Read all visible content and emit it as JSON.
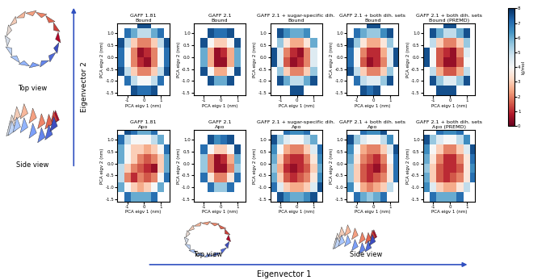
{
  "chart_data": {
    "type": "heatmap",
    "x_label": "PCA eigv 1 (nm)",
    "y_label": "PCA eigv 2 (nm)",
    "xlim": [
      -1.6,
      1.5
    ],
    "ylim": [
      -1.6,
      1.4
    ],
    "xticks": [
      -1,
      0,
      1
    ],
    "yticks": [
      {
        "value": -1.5,
        "label": "-1.5"
      },
      {
        "value": -1.0,
        "label": "-1.0"
      },
      {
        "value": -0.5,
        "label": "-0.5"
      },
      {
        "value": 0.0,
        "label": "0.0"
      },
      {
        "value": 0.5,
        "label": "0.5"
      },
      {
        "value": 1.0,
        "label": "1.0"
      }
    ],
    "x_edges": [
      -1.6,
      -1.2,
      -0.8,
      -0.4,
      0.0,
      0.4,
      0.8,
      1.2,
      1.6
    ],
    "y_edges": [
      -1.6,
      -1.2,
      -0.8,
      -0.4,
      0.0,
      0.4,
      0.8,
      1.2,
      1.6
    ],
    "colorbar": {
      "label": "kJ/mol",
      "lim": [
        0,
        8
      ],
      "ticks": [
        0,
        1,
        2,
        3,
        4,
        5,
        6,
        7,
        8
      ]
    },
    "annotations": {
      "eigenvector_1": "Eigenvector 1",
      "eigenvector_2": "Eigenvector 2",
      "top_view": "Top view",
      "side_view": "Side view"
    },
    "panels": [
      {
        "title": "GAFF 1.81\nBound",
        "cells": [
          [
            null,
            null,
            7.5,
            7,
            7,
            7.5,
            null,
            null
          ],
          [
            null,
            7,
            5,
            4,
            4,
            5,
            7,
            null
          ],
          [
            7.5,
            5,
            3,
            2,
            2,
            3,
            5,
            7.5
          ],
          [
            7,
            4,
            2,
            1,
            0.5,
            2,
            4,
            7
          ],
          [
            7,
            4,
            2,
            0.5,
            1,
            2,
            4,
            7
          ],
          [
            7.5,
            5,
            3,
            2,
            2,
            3,
            5,
            7.5
          ],
          [
            null,
            7,
            6,
            5,
            5,
            6,
            7,
            null
          ],
          [
            null,
            null,
            null,
            7.5,
            7.5,
            null,
            null,
            null
          ]
        ]
      },
      {
        "title": "GAFF 2.1\nBound",
        "cells": [
          [
            null,
            null,
            null,
            null,
            null,
            null,
            null,
            null
          ],
          [
            null,
            null,
            7.5,
            6,
            6,
            7.5,
            null,
            null
          ],
          [
            null,
            7.5,
            4,
            2.5,
            2.5,
            4,
            7.5,
            null
          ],
          [
            null,
            6,
            2.5,
            0.5,
            0.5,
            2.5,
            6,
            null
          ],
          [
            null,
            6,
            2.5,
            0.5,
            1,
            2.5,
            6,
            null
          ],
          [
            null,
            7.5,
            4,
            3,
            3,
            4,
            7.5,
            null
          ],
          [
            null,
            null,
            7.5,
            7,
            7,
            7.5,
            null,
            null
          ],
          [
            null,
            null,
            null,
            null,
            null,
            null,
            null,
            null
          ]
        ]
      },
      {
        "title": "GAFF 2.1 + sugar-specific dih.\nBound",
        "cells": [
          [
            null,
            null,
            null,
            7.5,
            7.5,
            null,
            null,
            null
          ],
          [
            null,
            7.5,
            6,
            5,
            5,
            6,
            7.5,
            null
          ],
          [
            null,
            5.5,
            3,
            2,
            2,
            3,
            5.5,
            null
          ],
          [
            7.5,
            4.5,
            1.5,
            0.5,
            1,
            2,
            4.5,
            null
          ],
          [
            7.5,
            4.5,
            2,
            1,
            0.5,
            2,
            4.5,
            null
          ],
          [
            null,
            5.5,
            3.5,
            2.5,
            2.5,
            3.5,
            6,
            null
          ],
          [
            null,
            7.5,
            6.5,
            6,
            6,
            6.5,
            null,
            null
          ],
          [
            null,
            null,
            null,
            null,
            null,
            null,
            null,
            null
          ]
        ]
      },
      {
        "title": "GAFF 2.1 + both dih. sets\nBound",
        "cells": [
          [
            null,
            null,
            7.5,
            7,
            7.5,
            null,
            null,
            null
          ],
          [
            null,
            7,
            5,
            4.5,
            4.5,
            5.5,
            7.5,
            null
          ],
          [
            7.5,
            5,
            3,
            2,
            2,
            3,
            5.5,
            null
          ],
          [
            7,
            4,
            1.5,
            0.5,
            1,
            2,
            4.5,
            7.5
          ],
          [
            7,
            4,
            2,
            1,
            1,
            2.5,
            4.5,
            7.5
          ],
          [
            7.5,
            5.5,
            3.5,
            2.5,
            2.5,
            3.5,
            5.5,
            null
          ],
          [
            null,
            7,
            6,
            5.5,
            5.5,
            6.5,
            7.5,
            null
          ],
          [
            null,
            null,
            null,
            7.5,
            7.5,
            null,
            null,
            null
          ]
        ]
      },
      {
        "title": "GAFF 2.1 + both dih. sets\nBound (PREMD)",
        "cells": [
          [
            null,
            null,
            7.5,
            7.5,
            7.5,
            null,
            null,
            null
          ],
          [
            null,
            7.5,
            5.5,
            4.5,
            4.5,
            5.5,
            7.5,
            null
          ],
          [
            null,
            5,
            2.5,
            1.5,
            1.5,
            2.5,
            5,
            null
          ],
          [
            7.5,
            4,
            1.5,
            0.5,
            0.5,
            1.5,
            4,
            null
          ],
          [
            7.5,
            4,
            1.5,
            1,
            0.5,
            2,
            4.5,
            null
          ],
          [
            null,
            5,
            3,
            2,
            2,
            3,
            5.5,
            null
          ],
          [
            null,
            7.5,
            6,
            5,
            5,
            6,
            7.5,
            null
          ],
          [
            null,
            null,
            null,
            7.5,
            7.5,
            null,
            null,
            null
          ]
        ]
      },
      {
        "title": "GAFF 1.81\nApo",
        "cells": [
          [
            null,
            7,
            6,
            6,
            6,
            7,
            null,
            null
          ],
          [
            6,
            4,
            3,
            2.5,
            3,
            4,
            6,
            null
          ],
          [
            5,
            2,
            1,
            2,
            1.5,
            2,
            4,
            7
          ],
          [
            5,
            3,
            2,
            1.5,
            1,
            0.5,
            3,
            6
          ],
          [
            6,
            4,
            3,
            2,
            1.5,
            2,
            3,
            6
          ],
          [
            6,
            4,
            3,
            3,
            2.5,
            3,
            4,
            7
          ],
          [
            7,
            5,
            4,
            4,
            4,
            5,
            6,
            null
          ],
          [
            null,
            7.5,
            7,
            6,
            6,
            7,
            null,
            null
          ]
        ]
      },
      {
        "title": "GAFF 2.1\nApo",
        "cells": [
          [
            null,
            null,
            null,
            null,
            null,
            null,
            null,
            null
          ],
          [
            null,
            null,
            7,
            5.5,
            5.5,
            7,
            null,
            null
          ],
          [
            null,
            7,
            3.5,
            2,
            2,
            3.5,
            7,
            null
          ],
          [
            null,
            5.5,
            2,
            0.5,
            0.5,
            2,
            5.5,
            null
          ],
          [
            null,
            5.5,
            2,
            0.5,
            1,
            2.5,
            6,
            null
          ],
          [
            null,
            7,
            4,
            3,
            3,
            4,
            7.5,
            null
          ],
          [
            null,
            null,
            7.5,
            6.5,
            7,
            7.5,
            null,
            null
          ],
          [
            null,
            null,
            null,
            null,
            null,
            null,
            null,
            null
          ]
        ]
      },
      {
        "title": "GAFF 2.1 + sugar-specific dih.\nApo",
        "cells": [
          [
            null,
            7.5,
            6.5,
            6,
            6,
            6.5,
            7.5,
            null
          ],
          [
            7,
            4.5,
            3,
            2.5,
            2.5,
            3,
            4.5,
            7.5
          ],
          [
            6,
            3,
            1.5,
            1,
            1.5,
            2,
            3.5,
            6.5
          ],
          [
            5.5,
            2.5,
            1,
            0.5,
            1,
            1.5,
            3,
            6
          ],
          [
            6,
            3,
            1.5,
            1,
            1,
            2,
            3.5,
            6.5
          ],
          [
            6.5,
            4,
            2.5,
            2,
            2,
            3,
            4.5,
            7
          ],
          [
            7.5,
            5.5,
            4.5,
            4,
            4,
            5,
            6,
            null
          ],
          [
            null,
            null,
            7,
            6.5,
            6.5,
            7,
            null,
            null
          ]
        ]
      },
      {
        "title": "GAFF 2.1 + both dih. sets\nApo",
        "cells": [
          [
            null,
            7,
            6,
            5.5,
            6,
            7,
            null,
            null
          ],
          [
            6.5,
            4,
            2.5,
            2,
            2.5,
            3,
            5,
            null
          ],
          [
            5.5,
            3,
            1.5,
            1,
            1.5,
            2,
            3.5,
            7
          ],
          [
            5.5,
            3,
            1.5,
            1,
            0.5,
            1.5,
            3.5,
            7
          ],
          [
            6,
            3.5,
            2,
            1.5,
            1,
            2,
            4,
            7
          ],
          [
            6.5,
            4,
            2.5,
            2,
            2,
            3,
            4.5,
            7.5
          ],
          [
            7.5,
            5.5,
            4.5,
            4,
            4,
            5,
            6.5,
            null
          ],
          [
            null,
            null,
            7,
            6.5,
            6.5,
            7.5,
            null,
            null
          ]
        ]
      },
      {
        "title": "GAFF 2.1 + both dih. sets\nApo (PREMD)",
        "cells": [
          [
            null,
            7,
            6,
            6,
            6,
            7,
            null,
            null
          ],
          [
            6.5,
            4.5,
            3,
            2.5,
            2.5,
            3.5,
            5,
            null
          ],
          [
            6,
            3,
            1.5,
            1,
            1.5,
            2,
            3.5,
            7
          ],
          [
            5.5,
            3,
            1.5,
            1,
            1,
            1.5,
            3.5,
            6.5
          ],
          [
            6,
            3.5,
            2,
            1,
            1,
            2,
            3.5,
            7
          ],
          [
            6.5,
            4,
            3,
            2,
            2,
            3,
            4.5,
            7.5
          ],
          [
            7.5,
            5.5,
            4.5,
            4,
            4,
            5,
            6.5,
            null
          ],
          [
            null,
            null,
            7,
            6.5,
            6.5,
            7,
            null,
            null
          ]
        ]
      }
    ]
  }
}
